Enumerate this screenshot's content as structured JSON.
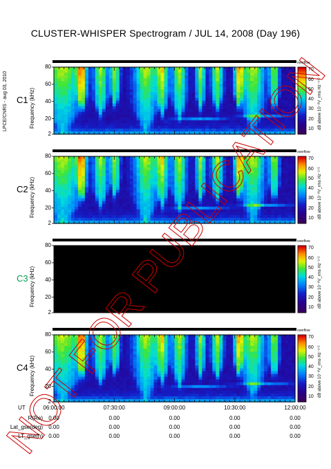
{
  "title": "CLUSTER-WHISPER Spectrogram / JUL 14, 2008 (Day 196)",
  "side_label": "LPCE/CNRS - aug 03, 2010",
  "watermark": "NOT FOR PUBLICATION",
  "colors": {
    "background": "#ffffff",
    "watermark": "#cc0000",
    "c3_label": "#00a050",
    "no_data": "#000000"
  },
  "chart_data": {
    "type": "heatmap",
    "panels": [
      {
        "name": "C1",
        "ylabel": "Frequency (kHz)",
        "has_data": true
      },
      {
        "name": "C2",
        "ylabel": "Frequency (kHz)",
        "has_data": true
      },
      {
        "name": "C3",
        "ylabel": "Frequency (kHz)",
        "has_data": false
      },
      {
        "name": "C4",
        "ylabel": "Frequency (kHz)",
        "has_data": true
      }
    ],
    "y_ticks": [
      "2",
      "20",
      "40",
      "60",
      "80"
    ],
    "y_tick_values": [
      2,
      20,
      40,
      60,
      80
    ],
    "ylim": [
      2,
      80
    ],
    "colorbar": {
      "label": "dB above 10⁻⁸V_rms Hz⁻¹ᐟ²",
      "top_label": "overflow",
      "ticks": [
        "10",
        "20",
        "30",
        "40",
        "50",
        "60",
        "70"
      ],
      "tick_values": [
        10,
        20,
        30,
        40,
        50,
        60,
        70
      ],
      "range": [
        5,
        73
      ]
    },
    "x_label": "UT",
    "x_ticks": [
      "06:00:00",
      "07:30:00",
      "09:00:00",
      "10:30:00",
      "12:00:00"
    ],
    "xlim_hours": [
      6,
      12
    ],
    "ephemeris": [
      {
        "label": "R(Re)",
        "values": [
          "0.00",
          "0.00",
          "0.00",
          "0.00",
          "0.00"
        ]
      },
      {
        "label": "Lat_gse(deg)",
        "values": [
          "0.00",
          "0.00",
          "0.00",
          "0.00",
          "0.00"
        ]
      },
      {
        "label": "LT_gse(h)",
        "values": [
          "0.00",
          "0.00",
          "0.00",
          "0.00",
          "0.00"
        ]
      }
    ]
  }
}
